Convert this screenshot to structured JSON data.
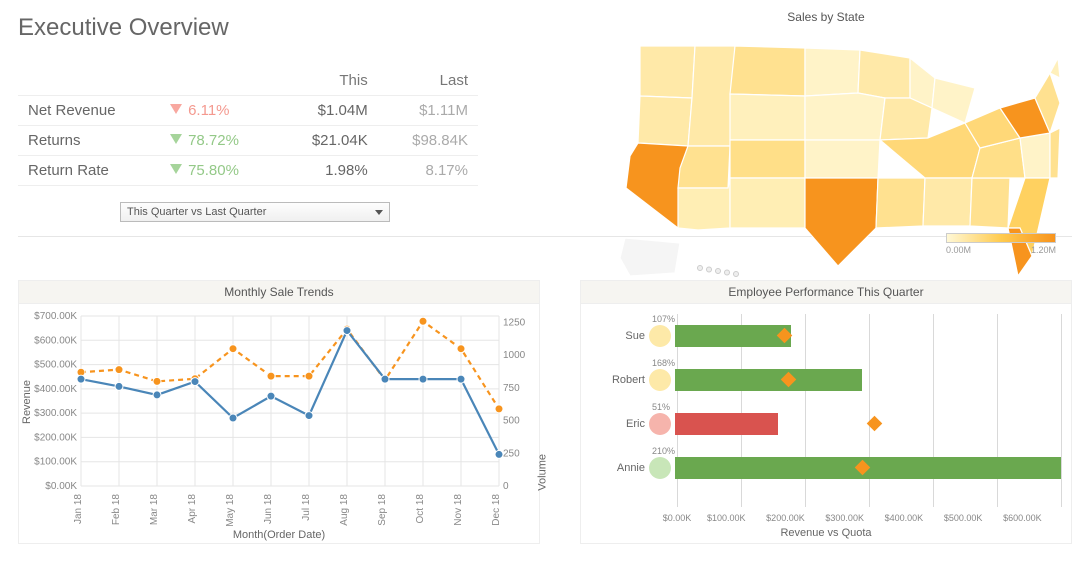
{
  "title": "Executive Overview",
  "kpi": {
    "headers": {
      "this": "This",
      "last": "Last"
    },
    "rows": [
      {
        "name": "Net Revenue",
        "dir": "down",
        "tone": "red",
        "change": "6.11%",
        "this": "$1.04M",
        "last": "$1.11M"
      },
      {
        "name": "Returns",
        "dir": "down",
        "tone": "green",
        "change": "78.72%",
        "this": "$21.04K",
        "last": "$98.84K"
      },
      {
        "name": "Return Rate",
        "dir": "down",
        "tone": "green",
        "change": "75.80%",
        "this": "1.98%",
        "last": "8.17%"
      }
    ],
    "change_colors": {
      "red": "#f4998f",
      "green": "#94c988"
    }
  },
  "period_selector": {
    "selected": "This Quarter vs Last Quarter"
  },
  "trends": {
    "title": "Monthly Sale Trends",
    "type": "dual-axis-line",
    "months": [
      "Jan 18",
      "Feb 18",
      "Mar 18",
      "Apr 18",
      "May 18",
      "Jun 18",
      "Jul 18",
      "Aug 18",
      "Sep 18",
      "Oct 18",
      "Nov 18",
      "Dec 18"
    ],
    "left_axis": {
      "label": "Revenue",
      "min": 0,
      "max": 700,
      "step": 100,
      "ticks": [
        "$0.00K",
        "$100.00K",
        "$200.00K",
        "$300.00K",
        "$400.00K",
        "$500.00K",
        "$600.00K",
        "$700.00K"
      ],
      "color": "#4a86b8",
      "values": [
        440,
        410,
        375,
        430,
        280,
        370,
        290,
        640,
        440,
        440,
        440,
        130
      ]
    },
    "right_axis": {
      "label": "Volume",
      "min": 0,
      "max": 1300,
      "step": 250,
      "ticks": [
        "0",
        "250",
        "500",
        "750",
        "1000",
        "1250"
      ],
      "color": "#f7941e",
      "dash": "5,4",
      "values": [
        870,
        890,
        800,
        820,
        1050,
        840,
        840,
        1200,
        810,
        1260,
        1050,
        590
      ]
    },
    "x_label": "Month(Order Date)",
    "grid_color": "#e5e5e5",
    "font_size": 10
  },
  "map": {
    "title": "Sales by State",
    "legend": {
      "min_label": "0.00M",
      "max_label": "1.20M"
    },
    "colors": {
      "low": "#fff8d6",
      "mid": "#ffd56b",
      "high": "#f7941e",
      "stroke": "#ffffff"
    }
  },
  "employees": {
    "title": "Employee Performance This Quarter",
    "x_label": "Revenue vs Quota",
    "x_max": 600,
    "ticks": [
      "$0.00K",
      "$100.00K",
      "$200.00K",
      "$300.00K",
      "$400.00K",
      "$500.00K",
      "$600.00K"
    ],
    "good_color": "#6aa84f",
    "bad_color": "#d9534f",
    "marker_color": "#f7941e",
    "dot_colors": {
      "ok": "#fde9a8",
      "bad": "#f6b4ac",
      "good": "#c8e6b8"
    },
    "rows": [
      {
        "name": "Sue",
        "pct": "107%",
        "dot": "ok",
        "bar": 180,
        "bar_color": "good",
        "quota": 170
      },
      {
        "name": "Robert",
        "pct": "168%",
        "dot": "ok",
        "bar": 290,
        "bar_color": "good",
        "quota": 175
      },
      {
        "name": "Eric",
        "pct": "51%",
        "dot": "bad",
        "bar": 160,
        "bar_color": "bad",
        "quota": 310
      },
      {
        "name": "Annie",
        "pct": "210%",
        "dot": "good",
        "bar": 600,
        "bar_color": "good",
        "quota": 290
      }
    ]
  }
}
